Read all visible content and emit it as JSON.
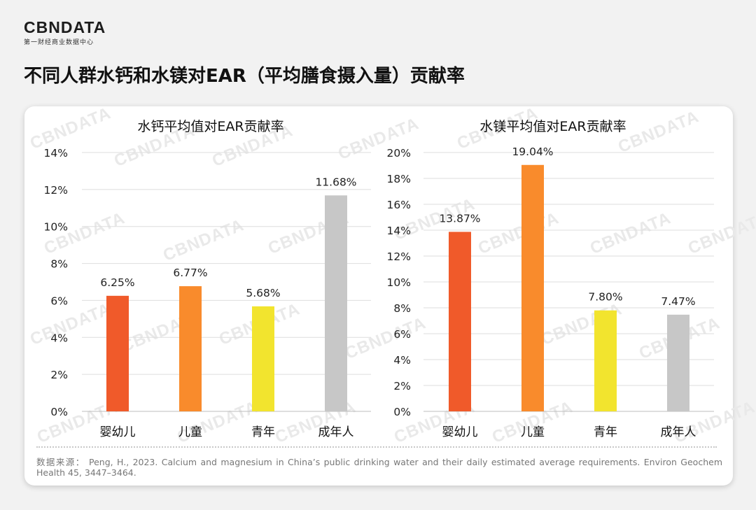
{
  "logo": {
    "word": "CBNDATA",
    "sub": "第一财经商业数据中心"
  },
  "page_title": "不同人群水钙和水镁对EAR（平均膳食摄入量）贡献率",
  "watermark_text": "CBNDATA",
  "colors": {
    "red_orange": "#f05a2a",
    "orange": "#f98b2c",
    "yellow": "#f2e42e",
    "gray": "#c7c7c7"
  },
  "chart_data": [
    {
      "type": "bar",
      "title": "水钙平均值对EAR贡献率",
      "categories": [
        "婴幼儿",
        "儿童",
        "青年",
        "成年人"
      ],
      "values": [
        6.25,
        6.77,
        5.68,
        11.68
      ],
      "value_labels": [
        "6.25%",
        "6.77%",
        "5.68%",
        "11.68%"
      ],
      "bar_colors": [
        "#f05a2a",
        "#f98b2c",
        "#f2e42e",
        "#c7c7c7"
      ],
      "ylim": [
        0,
        14
      ],
      "yticks": [
        "0%",
        "2%",
        "4%",
        "6%",
        "8%",
        "10%",
        "12%",
        "14%"
      ],
      "grid": true,
      "xlabel": "",
      "ylabel": ""
    },
    {
      "type": "bar",
      "title": "水镁平均值对EAR贡献率",
      "categories": [
        "婴幼儿",
        "儿童",
        "青年",
        "成年人"
      ],
      "values": [
        13.87,
        19.04,
        7.8,
        7.47
      ],
      "value_labels": [
        "13.87%",
        "19.04%",
        "7.80%",
        "7.47%"
      ],
      "bar_colors": [
        "#f05a2a",
        "#f98b2c",
        "#f2e42e",
        "#c7c7c7"
      ],
      "ylim": [
        0,
        20
      ],
      "yticks": [
        "0%",
        "2%",
        "4%",
        "6%",
        "8%",
        "10%",
        "12%",
        "14%",
        "16%",
        "18%",
        "20%"
      ],
      "grid": true,
      "xlabel": "",
      "ylabel": ""
    }
  ],
  "source_note": "数据来源： Peng, H., 2023. Calcium and magnesium in China’s public drinking water and their daily estimated average requirements. Environ Geochem Health 45, 3447–3464."
}
